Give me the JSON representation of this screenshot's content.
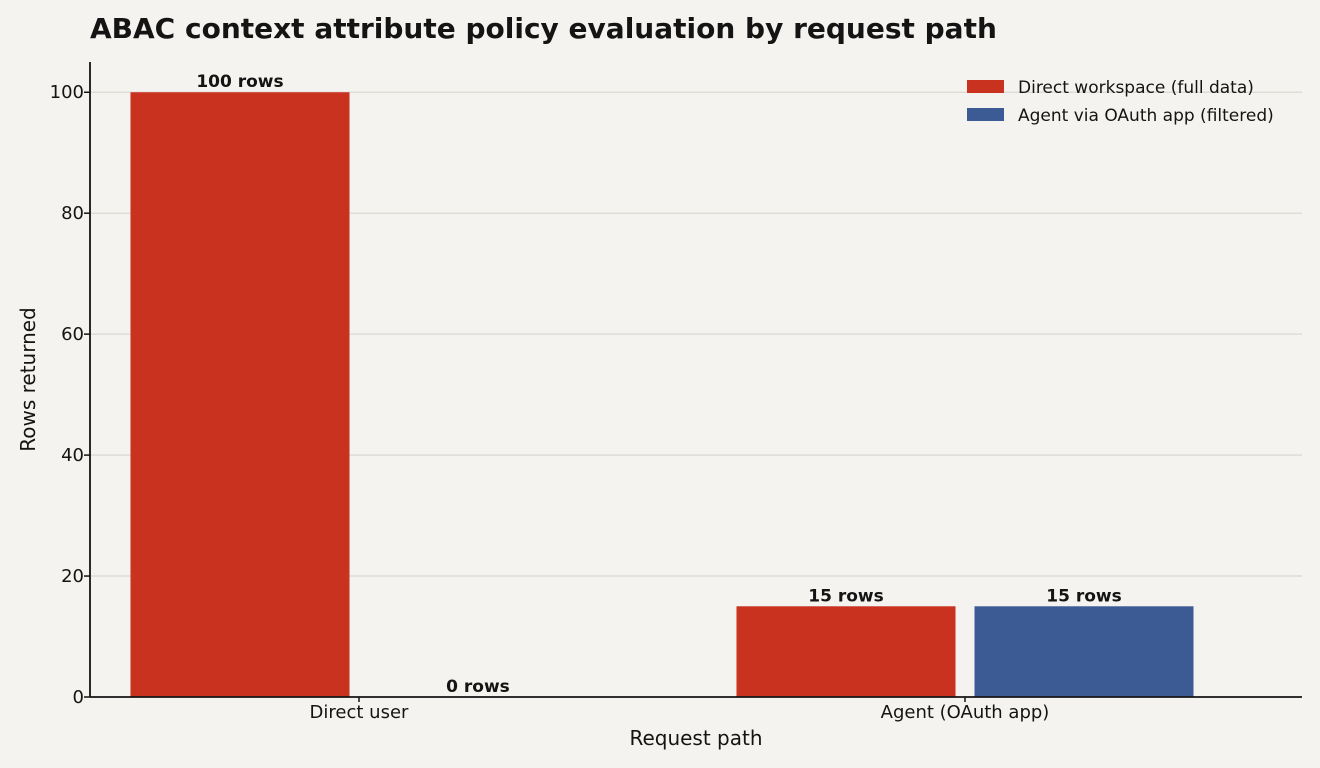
{
  "chart_data": {
    "type": "bar",
    "title": "ABAC context attribute policy evaluation by request path",
    "xlabel": "Request path",
    "ylabel": "Rows returned",
    "categories": [
      "Direct user",
      "Agent (OAuth app)"
    ],
    "series": [
      {
        "name": "Direct workspace (full data)",
        "color": "#c8321f",
        "values": [
          100,
          15
        ],
        "labels": [
          "100 rows",
          "15 rows"
        ]
      },
      {
        "name": "Agent via OAuth app (filtered)",
        "color": "#3c5a94",
        "values": [
          0,
          15
        ],
        "labels": [
          "0 rows",
          "15 rows"
        ]
      }
    ],
    "ylim": [
      0,
      105
    ],
    "yticks": [
      0,
      20,
      40,
      60,
      80,
      100
    ],
    "grid": true,
    "legend_position": "top-right"
  }
}
